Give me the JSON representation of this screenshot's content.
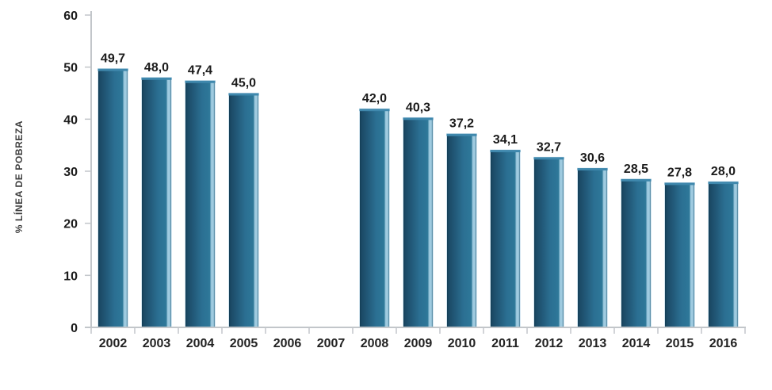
{
  "chart_data": {
    "type": "bar",
    "title": "",
    "xlabel": "",
    "ylabel": "% LÍNEA DE POBREZA",
    "categories": [
      "2002",
      "2003",
      "2004",
      "2005",
      "2006",
      "2007",
      "2008",
      "2009",
      "2010",
      "2011",
      "2012",
      "2013",
      "2014",
      "2015",
      "2016"
    ],
    "values": [
      49.7,
      48.0,
      47.4,
      45.0,
      null,
      null,
      42.0,
      40.3,
      37.2,
      34.1,
      32.7,
      30.6,
      28.5,
      27.8,
      28.0
    ],
    "value_labels": [
      "49,7",
      "48,0",
      "47,4",
      "45,0",
      "",
      "",
      "42,0",
      "40,3",
      "37,2",
      "34,1",
      "32,7",
      "30,6",
      "28,5",
      "27,8",
      "28,0"
    ],
    "y_ticks": [
      0,
      10,
      20,
      30,
      40,
      50,
      60
    ],
    "ylim": [
      0,
      60
    ],
    "grid": false,
    "legend": null,
    "colors": {
      "bar_edge_dark": "#113a52",
      "bar_left": "#1b4965",
      "bar_mid": "#2b6f92",
      "bar_right": "#2e7899",
      "bar_highlight": "#9fcbe0",
      "bar_right_edge": "#2b637f",
      "bar_cap": "#3f88ad",
      "bar_outline": "#d7e8f2",
      "axis": "#c2c6ca",
      "tick_text": "#1b1b1b",
      "value_text": "#1b1b1b",
      "x_label_text": "#222222"
    }
  }
}
